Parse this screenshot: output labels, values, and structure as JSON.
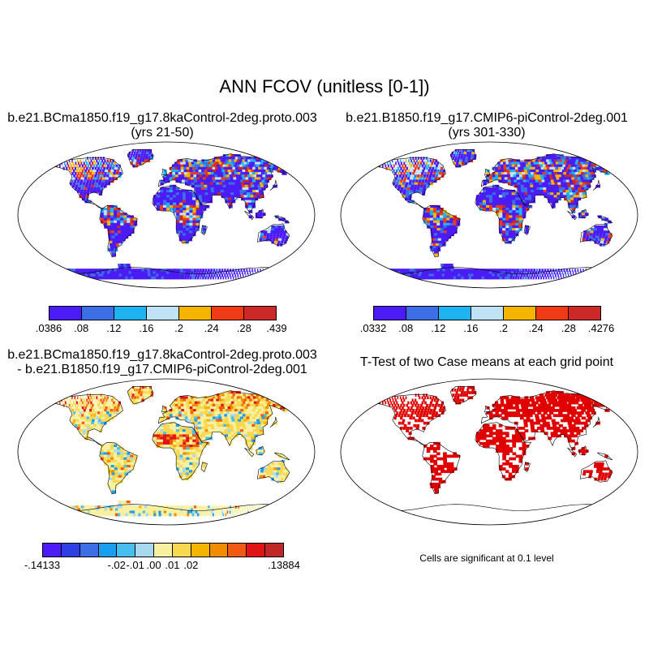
{
  "figure": {
    "title": "ANN FCOV (unitless [0-1])"
  },
  "panels": [
    {
      "id": "case",
      "title_line1": "b.e21.BCma1850.f19_g17.8kaControl-2deg.proto.003",
      "title_line2": "(yrs 21-50)",
      "colorbar": {
        "colors": [
          "#4b1cf5",
          "#3c6ee6",
          "#1eb3f0",
          "#bfe3f5",
          "#f5b400",
          "#f03c14",
          "#cc2828"
        ],
        "labels": [
          ".0386",
          ".08",
          ".12",
          ".16",
          ".2",
          ".24",
          ".28",
          ".439"
        ]
      }
    },
    {
      "id": "control",
      "title_line1": "b.e21.B1850.f19_g17.CMIP6-piControl-2deg.001",
      "title_line2": "(yrs 301-330)",
      "colorbar": {
        "colors": [
          "#4b1cf5",
          "#3c6ee6",
          "#1eb3f0",
          "#bfe3f5",
          "#f5b400",
          "#f03c14",
          "#cc2828"
        ],
        "labels": [
          ".0332",
          ".08",
          ".12",
          ".16",
          ".2",
          ".24",
          ".28",
          ".4276"
        ]
      }
    },
    {
      "id": "difference",
      "title_line1": "b.e21.BCma1850.f19_g17.8kaControl-2deg.proto.003",
      "title_line2": "- b.e21.B1850.f19_g17.CMIP6-piControl-2deg.001",
      "colorbar": {
        "colors": [
          "#4b1cf5",
          "#2f3fe6",
          "#3c6ee6",
          "#1a9ef0",
          "#48bdf0",
          "#a6d8f0",
          "#f7f0a0",
          "#f7d850",
          "#f5b400",
          "#f08c00",
          "#f05a14",
          "#e01414",
          "#c02828"
        ],
        "labels": [
          "-.14133",
          "-.02",
          "-.01",
          ".00",
          ".01",
          ".02",
          ".13884"
        ]
      }
    },
    {
      "id": "ttest",
      "title_line1": "T-Test of two Case means at each grid point",
      "note": "Cells are significant at 0.1 level",
      "significance_color": "#e00000"
    }
  ]
}
